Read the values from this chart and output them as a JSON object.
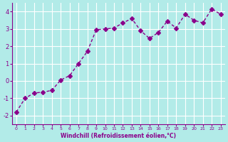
{
  "x": [
    0,
    1,
    2,
    3,
    4,
    5,
    6,
    7,
    8,
    9,
    10,
    11,
    12,
    13,
    14,
    15,
    16,
    17,
    18,
    19,
    20,
    21,
    22,
    23
  ],
  "y": [
    -1.8,
    -1.0,
    -0.7,
    -0.65,
    -0.55,
    0.05,
    0.3,
    1.0,
    1.7,
    2.95,
    3.0,
    3.05,
    3.35,
    3.6,
    2.9,
    2.45,
    2.8,
    3.45,
    3.05,
    3.85,
    3.5,
    3.35,
    4.15,
    3.85
  ],
  "line_color": "#8B008B",
  "marker": "D",
  "marker_size": 3,
  "bg_color": "#b2ebe8",
  "grid_color": "#ffffff",
  "xlabel": "Windchill (Refroidissement éolien,°C)",
  "xlabel_color": "#8B008B",
  "tick_color": "#8B008B",
  "ylabel_ticks": [
    -2,
    -1,
    0,
    1,
    2,
    3,
    4
  ],
  "xlim": [
    -0.5,
    23.5
  ],
  "ylim": [
    -2.5,
    4.5
  ],
  "xticks": [
    0,
    1,
    2,
    3,
    4,
    5,
    6,
    7,
    8,
    9,
    10,
    11,
    12,
    13,
    14,
    15,
    16,
    17,
    18,
    19,
    20,
    21,
    22,
    23
  ]
}
